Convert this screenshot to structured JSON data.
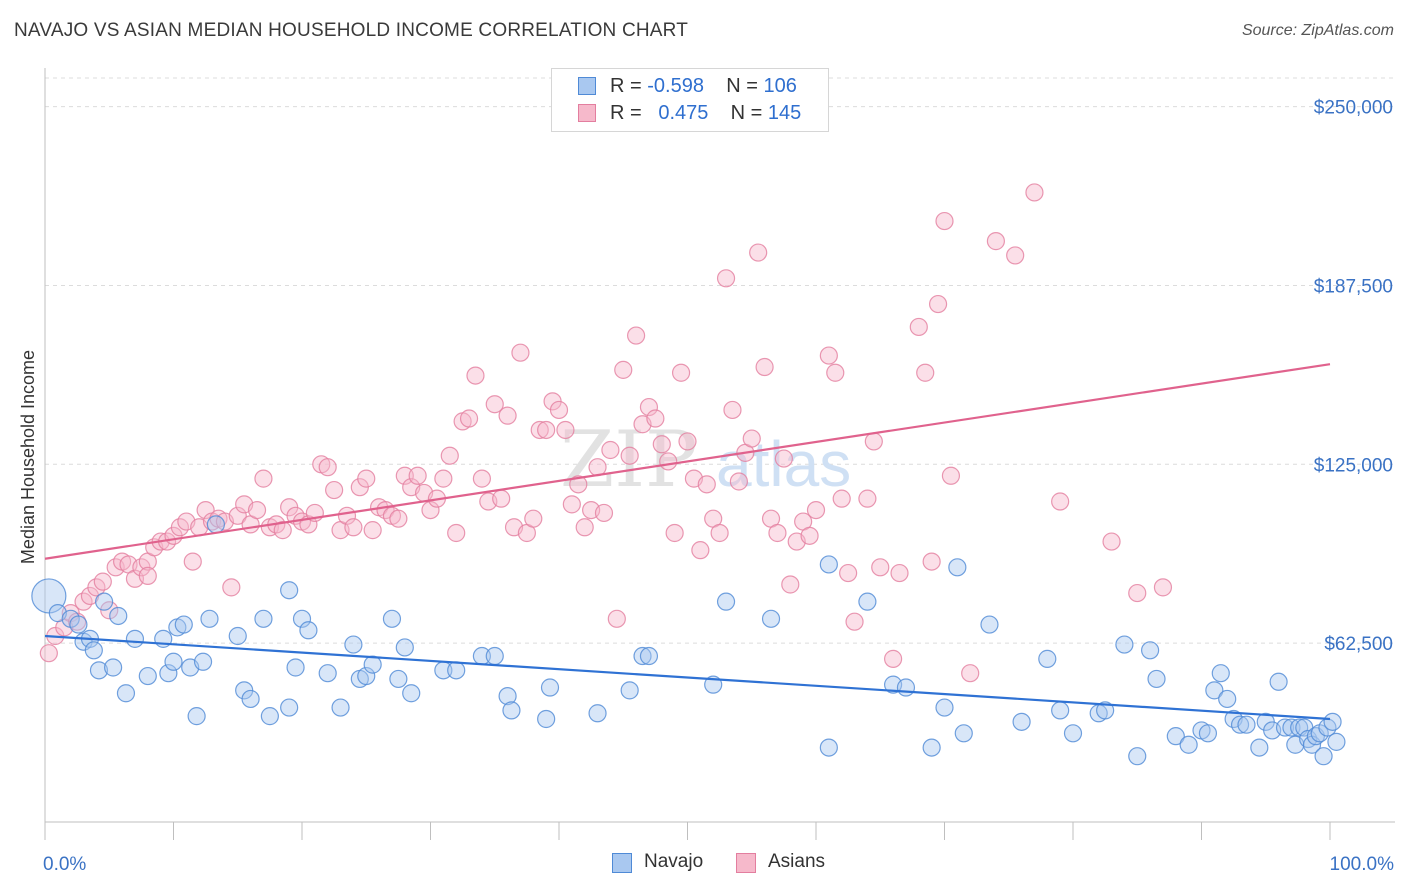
{
  "header": {
    "title": "NAVAJO VS ASIAN MEDIAN HOUSEHOLD INCOME CORRELATION CHART",
    "source": "Source: ZipAtlas.com"
  },
  "legend_top": {
    "navajo": {
      "r_label": "R = ",
      "r_value": "-0.598",
      "n_label": "N = ",
      "n_value": "106"
    },
    "asians": {
      "r_label": "R = ",
      "r_value": "0.475",
      "n_label": "N = ",
      "n_value": "145"
    }
  },
  "legend_bottom": {
    "navajo": "Navajo",
    "asians": "Asians"
  },
  "watermark": {
    "zip": "ZIP",
    "atlas": "atlas"
  },
  "colors": {
    "navajo_fill": "#a9c8f0",
    "navajo_stroke": "#4f8ad6",
    "navajo_line": "#2f72d4",
    "asians_fill": "#f6b9cb",
    "asians_stroke": "#e37e9f",
    "asians_line": "#e0628d",
    "tick_text": "#3a72c4",
    "grid": "#dcdcdc"
  },
  "chart_data": {
    "type": "scatter",
    "title": "NAVAJO VS ASIAN MEDIAN HOUSEHOLD INCOME CORRELATION CHART",
    "xlabel": "",
    "ylabel": "Median Household Income",
    "xlim": [
      0,
      100
    ],
    "ylim": [
      0,
      260000
    ],
    "x_tick_labels": [
      "0.0%",
      "100.0%"
    ],
    "y_ticks": [
      62500,
      125000,
      187500,
      250000
    ],
    "y_tick_labels": [
      "$62,500",
      "$125,000",
      "$187,500",
      "$250,000"
    ],
    "grid": "horizontal dashed",
    "legend_position": "top-center",
    "series": [
      {
        "name": "Navajo",
        "r": -0.598,
        "n": 106,
        "trend": {
          "x": [
            0,
            100
          ],
          "y": [
            65000,
            36000
          ]
        },
        "points": [
          [
            0.3,
            79000
          ],
          [
            1,
            73000
          ],
          [
            2,
            71000
          ],
          [
            2.6,
            69000
          ],
          [
            3,
            63000
          ],
          [
            3.5,
            64000
          ],
          [
            3.8,
            60000
          ],
          [
            4.2,
            53000
          ],
          [
            4.6,
            77000
          ],
          [
            5.3,
            54000
          ],
          [
            5.7,
            72000
          ],
          [
            6.3,
            45000
          ],
          [
            7,
            64000
          ],
          [
            8,
            51000
          ],
          [
            9.2,
            64000
          ],
          [
            9.6,
            52000
          ],
          [
            10,
            56000
          ],
          [
            10.3,
            68000
          ],
          [
            10.8,
            69000
          ],
          [
            11.3,
            54000
          ],
          [
            11.8,
            37000
          ],
          [
            12.3,
            56000
          ],
          [
            12.8,
            71000
          ],
          [
            13.3,
            104000
          ],
          [
            15,
            65000
          ],
          [
            15.5,
            46000
          ],
          [
            16,
            43000
          ],
          [
            17,
            71000
          ],
          [
            17.5,
            37000
          ],
          [
            19,
            40000
          ],
          [
            19,
            81000
          ],
          [
            19.5,
            54000
          ],
          [
            20,
            71000
          ],
          [
            20.5,
            67000
          ],
          [
            22,
            52000
          ],
          [
            23,
            40000
          ],
          [
            24,
            62000
          ],
          [
            24.5,
            50000
          ],
          [
            25,
            51000
          ],
          [
            25.5,
            55000
          ],
          [
            27,
            71000
          ],
          [
            27.5,
            50000
          ],
          [
            28,
            61000
          ],
          [
            28.5,
            45000
          ],
          [
            31,
            53000
          ],
          [
            32,
            53000
          ],
          [
            34,
            58000
          ],
          [
            35,
            58000
          ],
          [
            36,
            44000
          ],
          [
            36.3,
            39000
          ],
          [
            39,
            36000
          ],
          [
            39.3,
            47000
          ],
          [
            43,
            38000
          ],
          [
            45.5,
            46000
          ],
          [
            46.5,
            58000
          ],
          [
            47,
            58000
          ],
          [
            52,
            48000
          ],
          [
            53,
            77000
          ],
          [
            56.5,
            71000
          ],
          [
            61,
            26000
          ],
          [
            61,
            90000
          ],
          [
            64,
            77000
          ],
          [
            66,
            48000
          ],
          [
            67,
            47000
          ],
          [
            69,
            26000
          ],
          [
            70,
            40000
          ],
          [
            71.5,
            31000
          ],
          [
            71,
            89000
          ],
          [
            73.5,
            69000
          ],
          [
            76,
            35000
          ],
          [
            78,
            57000
          ],
          [
            79,
            39000
          ],
          [
            80,
            31000
          ],
          [
            82,
            38000
          ],
          [
            82.5,
            39000
          ],
          [
            84,
            62000
          ],
          [
            85,
            23000
          ],
          [
            86,
            60000
          ],
          [
            86.5,
            50000
          ],
          [
            88,
            30000
          ],
          [
            89,
            27000
          ],
          [
            90,
            32000
          ],
          [
            90.5,
            31000
          ],
          [
            91,
            46000
          ],
          [
            91.5,
            52000
          ],
          [
            92,
            43000
          ],
          [
            92.5,
            36000
          ],
          [
            93,
            34000
          ],
          [
            93.5,
            34000
          ],
          [
            94.5,
            26000
          ],
          [
            95,
            35000
          ],
          [
            95.5,
            32000
          ],
          [
            96,
            49000
          ],
          [
            96.5,
            33000
          ],
          [
            97,
            33000
          ],
          [
            97.3,
            27000
          ],
          [
            97.6,
            33000
          ],
          [
            98,
            33000
          ],
          [
            98.3,
            29000
          ],
          [
            98.6,
            27000
          ],
          [
            98.9,
            30000
          ],
          [
            99.2,
            31000
          ],
          [
            99.5,
            23000
          ],
          [
            99.8,
            33000
          ],
          [
            100.2,
            35000
          ],
          [
            100.5,
            28000
          ]
        ]
      },
      {
        "name": "Asians",
        "r": 0.475,
        "n": 145,
        "trend": {
          "x": [
            0,
            100
          ],
          "y": [
            92000,
            160000
          ]
        },
        "points": [
          [
            0.3,
            59000
          ],
          [
            0.8,
            65000
          ],
          [
            1.5,
            68000
          ],
          [
            2,
            73000
          ],
          [
            2.5,
            70000
          ],
          [
            3,
            77000
          ],
          [
            3.5,
            79000
          ],
          [
            4,
            82000
          ],
          [
            4.5,
            84000
          ],
          [
            5,
            74000
          ],
          [
            5.5,
            89000
          ],
          [
            6,
            91000
          ],
          [
            6.5,
            90000
          ],
          [
            7,
            85000
          ],
          [
            7.5,
            89000
          ],
          [
            8,
            91000
          ],
          [
            8,
            86000
          ],
          [
            8.5,
            96000
          ],
          [
            9,
            98000
          ],
          [
            9.5,
            98000
          ],
          [
            10,
            100000
          ],
          [
            10.5,
            103000
          ],
          [
            11,
            105000
          ],
          [
            11.5,
            91000
          ],
          [
            12,
            103000
          ],
          [
            12.5,
            109000
          ],
          [
            13,
            105000
          ],
          [
            13.5,
            106000
          ],
          [
            14,
            105000
          ],
          [
            14.5,
            82000
          ],
          [
            15,
            107000
          ],
          [
            15.5,
            111000
          ],
          [
            16,
            104000
          ],
          [
            16.5,
            109000
          ],
          [
            17,
            120000
          ],
          [
            17.5,
            103000
          ],
          [
            18,
            104000
          ],
          [
            18.5,
            102000
          ],
          [
            19,
            110000
          ],
          [
            19.5,
            107000
          ],
          [
            20,
            105000
          ],
          [
            20.5,
            104000
          ],
          [
            21,
            108000
          ],
          [
            21.5,
            125000
          ],
          [
            22,
            124000
          ],
          [
            22.5,
            116000
          ],
          [
            23,
            102000
          ],
          [
            23.5,
            107000
          ],
          [
            24,
            103000
          ],
          [
            24.5,
            117000
          ],
          [
            25,
            120000
          ],
          [
            25.5,
            102000
          ],
          [
            26,
            110000
          ],
          [
            26.5,
            109000
          ],
          [
            27,
            107000
          ],
          [
            27.5,
            106000
          ],
          [
            28,
            121000
          ],
          [
            28.5,
            117000
          ],
          [
            29,
            121000
          ],
          [
            29.5,
            115000
          ],
          [
            30,
            109000
          ],
          [
            30.5,
            113000
          ],
          [
            31,
            120000
          ],
          [
            31.5,
            128000
          ],
          [
            32,
            101000
          ],
          [
            32.5,
            140000
          ],
          [
            33,
            141000
          ],
          [
            33.5,
            156000
          ],
          [
            34,
            120000
          ],
          [
            34.5,
            112000
          ],
          [
            35,
            146000
          ],
          [
            35.5,
            113000
          ],
          [
            36,
            142000
          ],
          [
            36.5,
            103000
          ],
          [
            37,
            164000
          ],
          [
            37.5,
            101000
          ],
          [
            38,
            106000
          ],
          [
            38.5,
            137000
          ],
          [
            39,
            137000
          ],
          [
            39.5,
            147000
          ],
          [
            40,
            144000
          ],
          [
            40.5,
            137000
          ],
          [
            41,
            111000
          ],
          [
            41.5,
            118000
          ],
          [
            42,
            103000
          ],
          [
            42.5,
            109000
          ],
          [
            43,
            124000
          ],
          [
            43.5,
            108000
          ],
          [
            44,
            130000
          ],
          [
            44.5,
            71000
          ],
          [
            45,
            158000
          ],
          [
            45.5,
            128000
          ],
          [
            46,
            170000
          ],
          [
            46.5,
            139000
          ],
          [
            47,
            145000
          ],
          [
            47.5,
            141000
          ],
          [
            48,
            132000
          ],
          [
            48.5,
            126000
          ],
          [
            49,
            101000
          ],
          [
            49.5,
            157000
          ],
          [
            50,
            133000
          ],
          [
            50.5,
            120000
          ],
          [
            51,
            95000
          ],
          [
            51.5,
            118000
          ],
          [
            52,
            106000
          ],
          [
            52.5,
            101000
          ],
          [
            53,
            190000
          ],
          [
            53.5,
            144000
          ],
          [
            54,
            119000
          ],
          [
            54.5,
            129000
          ],
          [
            55,
            134000
          ],
          [
            55.5,
            199000
          ],
          [
            56,
            159000
          ],
          [
            56.5,
            106000
          ],
          [
            57,
            101000
          ],
          [
            57.5,
            127000
          ],
          [
            58,
            83000
          ],
          [
            58.5,
            98000
          ],
          [
            59,
            105000
          ],
          [
            59.5,
            100000
          ],
          [
            60,
            109000
          ],
          [
            61,
            163000
          ],
          [
            61.5,
            157000
          ],
          [
            62,
            113000
          ],
          [
            62.5,
            87000
          ],
          [
            63,
            70000
          ],
          [
            64,
            113000
          ],
          [
            64.5,
            133000
          ],
          [
            65,
            89000
          ],
          [
            66,
            57000
          ],
          [
            66.5,
            87000
          ],
          [
            68,
            173000
          ],
          [
            68.5,
            157000
          ],
          [
            69,
            91000
          ],
          [
            69.5,
            181000
          ],
          [
            70,
            210000
          ],
          [
            70.5,
            121000
          ],
          [
            72,
            52000
          ],
          [
            74,
            203000
          ],
          [
            75.5,
            198000
          ],
          [
            77,
            220000
          ],
          [
            79,
            112000
          ],
          [
            83,
            98000
          ],
          [
            85,
            80000
          ],
          [
            87,
            82000
          ]
        ]
      }
    ]
  }
}
